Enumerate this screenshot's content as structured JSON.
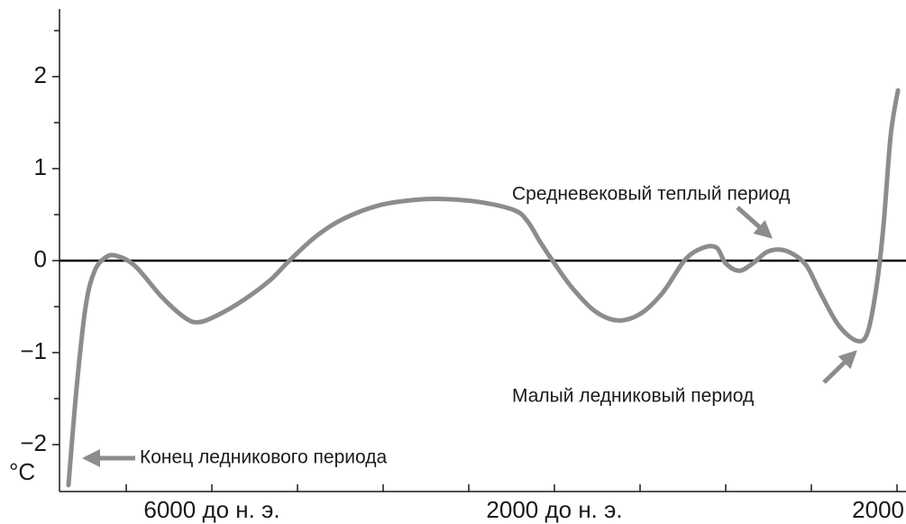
{
  "chart_data": {
    "type": "line",
    "ylabel": "°C",
    "xlim": [
      -7779,
      2105
    ],
    "ylim": [
      -2.51,
      2.735
    ],
    "xticks": [
      {
        "value": -6000,
        "label": "6000 до н. э."
      },
      {
        "value": -2000,
        "label": "2000 до н. э."
      },
      2000
    ],
    "xminor_ticks": [
      -7000,
      -5000,
      -4000,
      -3000,
      -1000,
      0,
      1000
    ],
    "yticks": [
      {
        "value": -2,
        "label": "−2"
      },
      {
        "value": -1,
        "label": "−1"
      },
      0,
      1,
      2
    ],
    "yminor_ticks": [
      -1.5,
      -0.5,
      0.5,
      1.5,
      2.5
    ],
    "zero_line": true,
    "x": [
      -7674,
      -7579,
      -7474,
      -7368,
      -7232,
      -7105,
      -6895,
      -6579,
      -6316,
      -6158,
      -5947,
      -5632,
      -5316,
      -5105,
      -4789,
      -4474,
      -4053,
      -3632,
      -3316,
      -2895,
      -2474,
      -2316,
      -2158,
      -2000,
      -1789,
      -1526,
      -1263,
      -1000,
      -737,
      -474,
      -263,
      -105,
      0,
      158,
      316,
      474,
      632,
      789,
      947,
      1105,
      1316,
      1526,
      1653,
      1758,
      1842,
      1926,
      2011
    ],
    "series": [
      {
        "color": "#8c8c8c",
        "values": [
          -2.44,
          -1.38,
          -0.5,
          -0.11,
          0.04,
          0.05,
          -0.06,
          -0.4,
          -0.62,
          -0.67,
          -0.6,
          -0.43,
          -0.21,
          -0.01,
          0.26,
          0.45,
          0.6,
          0.66,
          0.67,
          0.64,
          0.55,
          0.43,
          0.19,
          -0.03,
          -0.3,
          -0.55,
          -0.65,
          -0.58,
          -0.35,
          0.01,
          0.14,
          0.14,
          -0.03,
          -0.11,
          -0.03,
          0.09,
          0.12,
          0.07,
          -0.06,
          -0.35,
          -0.7,
          -0.87,
          -0.79,
          -0.3,
          0.38,
          1.36,
          1.85
        ]
      }
    ],
    "annotations": [
      "Конец ледникового периода",
      "Средневековый теплый период",
      "Малый ледниковый период"
    ]
  }
}
